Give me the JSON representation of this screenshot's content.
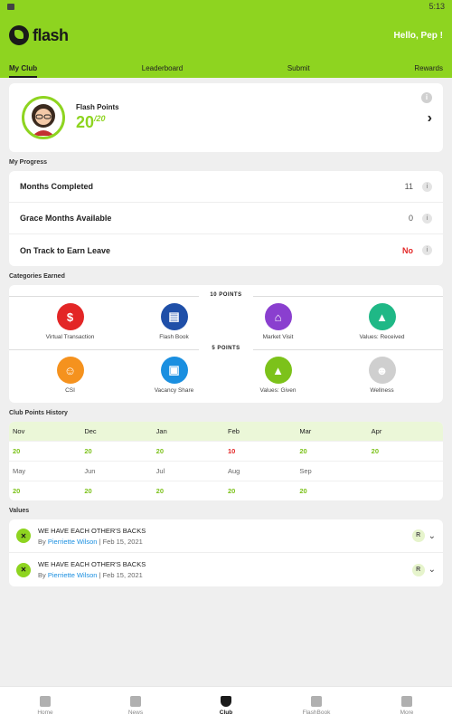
{
  "statusbar": {
    "time": "5:13"
  },
  "header": {
    "brand": "flash",
    "greeting": "Hello, Pep !"
  },
  "tabs": [
    {
      "label": "My Club",
      "active": true
    },
    {
      "label": "Leaderboard",
      "active": false
    },
    {
      "label": "Submit",
      "active": false
    },
    {
      "label": "Rewards",
      "active": false
    }
  ],
  "profile": {
    "points_label": "Flash Points",
    "points": "20",
    "points_max": "20"
  },
  "progress": {
    "section_label": "My Progress",
    "rows": [
      {
        "label": "Months Completed",
        "value": "11"
      },
      {
        "label": "Grace Months Available",
        "value": "0"
      },
      {
        "label": "On Track to Earn Leave",
        "value": "No"
      }
    ]
  },
  "categories": {
    "section_label": "Categories Earned",
    "groups": [
      {
        "heading": "10 POINTS",
        "items": [
          {
            "label": "Virtual Transaction",
            "color": "#e32626",
            "icon": "money-bag-icon",
            "glyph": "$"
          },
          {
            "label": "Flash Book",
            "color": "#1f4fa8",
            "icon": "book-icon",
            "glyph": "▤"
          },
          {
            "label": "Market Visit",
            "color": "#8a3fcf",
            "icon": "store-icon",
            "glyph": "⌂"
          },
          {
            "label": "Values: Received",
            "color": "#1fb886",
            "icon": "drop-icon",
            "glyph": "▲"
          }
        ]
      },
      {
        "heading": "5 POINTS",
        "items": [
          {
            "label": "CSI",
            "color": "#f5921e",
            "icon": "smiley-icon",
            "glyph": "☺"
          },
          {
            "label": "Vacancy Share",
            "color": "#1a8fe0",
            "icon": "briefcase-icon",
            "glyph": "▣"
          },
          {
            "label": "Values: Given",
            "color": "#7cc21a",
            "icon": "drop-icon",
            "glyph": "▲"
          },
          {
            "label": "Wellness",
            "color": "#cfcfcf",
            "icon": "person-icon",
            "glyph": "☻"
          }
        ]
      }
    ]
  },
  "history": {
    "section_label": "Club Points History",
    "row1_months": [
      "Nov",
      "Dec",
      "Jan",
      "Feb",
      "Mar",
      "Apr"
    ],
    "row1_values": [
      "20",
      "20",
      "20",
      "10",
      "20",
      "20"
    ],
    "row2_months": [
      "May",
      "Jun",
      "Jul",
      "Aug",
      "Sep",
      ""
    ],
    "row2_values": [
      "20",
      "20",
      "20",
      "20",
      "20",
      ""
    ]
  },
  "values": {
    "section_label": "Values",
    "items": [
      {
        "title": "WE HAVE EACH OTHER'S BACKS",
        "by": "By",
        "author": "Pierriette Wilson",
        "date": "Feb 15, 2021",
        "badge": "R"
      },
      {
        "title": "WE HAVE EACH OTHER'S BACKS",
        "by": "By",
        "author": "Pierriette Wilson",
        "date": "Feb 15, 2021",
        "badge": "R"
      }
    ]
  },
  "bottomnav": [
    {
      "label": "Home",
      "icon": "home-icon",
      "active": false
    },
    {
      "label": "News",
      "icon": "news-icon",
      "active": false
    },
    {
      "label": "Club",
      "icon": "club-shield-icon",
      "active": true
    },
    {
      "label": "FlashBook",
      "icon": "graduation-cap-icon",
      "active": false
    },
    {
      "label": "More",
      "icon": "grid-icon",
      "active": false
    }
  ]
}
